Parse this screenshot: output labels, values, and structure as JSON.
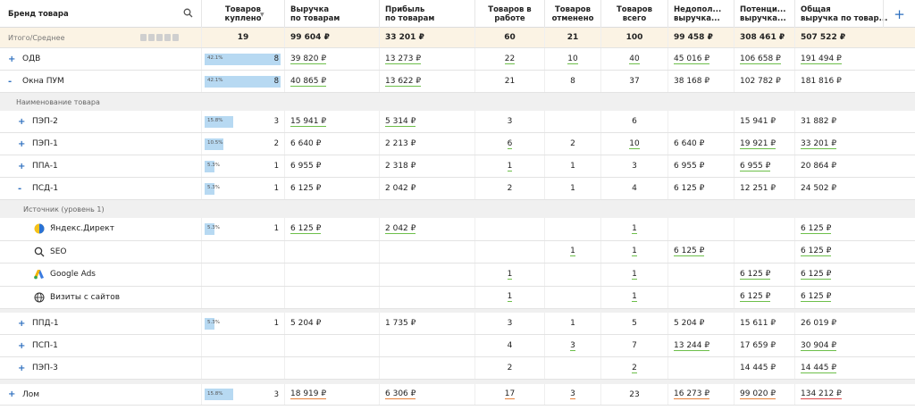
{
  "header": {
    "brand": "Бренд товара",
    "cols": [
      "Товаров\nкуплено",
      "Выручка\nпо товарам",
      "Прибыль\nпо товарам",
      "Товаров в\nработе",
      "Товаров\nотменено",
      "Товаров\nвсего",
      "Недопол...\nвыручка...",
      "Потенци...\nвыручка...",
      "Общая\nвыручка по товар..."
    ],
    "sort_indicator": "▼",
    "add_icon": "+",
    "search_icon": "search-icon"
  },
  "total": {
    "label": "Итого/Среднее",
    "values": [
      "19",
      "99 604 ₽",
      "33 201 ₽",
      "60",
      "21",
      "100",
      "99 458 ₽",
      "308 461 ₽",
      "507 522 ₽"
    ]
  },
  "rows_top": [
    {
      "label": "ОДВ",
      "toggle": "+",
      "pct": "42.1%",
      "count": "8",
      "values": [
        "39 820 ₽",
        "13 273 ₽",
        "22",
        "10",
        "40",
        "45 016 ₽",
        "106 658 ₽",
        "191 494 ₽"
      ]
    },
    {
      "label": "Окна ПУМ",
      "toggle": "-",
      "pct": "42.1%",
      "count": "8",
      "values": [
        "40 865 ₽",
        "13 622 ₽",
        "21",
        "8",
        "37",
        "38 168 ₽",
        "102 782 ₽",
        "181 816 ₽"
      ]
    }
  ],
  "section1": "Наименование товара",
  "rows_mid": [
    {
      "label": "ПЭП-2",
      "toggle": "+",
      "pct": "15.8%",
      "count": "3",
      "values": [
        "15 941 ₽",
        "5 314 ₽",
        "3",
        "",
        "6",
        "",
        "15 941 ₽",
        "31 882 ₽"
      ]
    },
    {
      "label": "ПЭП-1",
      "toggle": "+",
      "pct": "10.5%",
      "count": "2",
      "values": [
        "6 640 ₽",
        "2 213 ₽",
        "6",
        "2",
        "10",
        "6 640 ₽",
        "19 921 ₽",
        "33 201 ₽"
      ]
    },
    {
      "label": "ППА-1",
      "toggle": "+",
      "pct": "5.3%",
      "count": "1",
      "values": [
        "6 955 ₽",
        "2 318 ₽",
        "1",
        "1",
        "3",
        "6 955 ₽",
        "6 955 ₽",
        "20 864 ₽"
      ]
    },
    {
      "label": "ПСД-1",
      "toggle": "-",
      "pct": "5.3%",
      "count": "1",
      "values": [
        "6 125 ₽",
        "2 042 ₽",
        "2",
        "1",
        "4",
        "6 125 ₽",
        "12 251 ₽",
        "24 502 ₽"
      ]
    }
  ],
  "section2": "Источник (уровень 1)",
  "rows_src": [
    {
      "label": "Яндекс.Директ",
      "icon": "yandex-direct-icon",
      "pct": "5.3%",
      "count": "1",
      "values": [
        "6 125 ₽",
        "2 042 ₽",
        "",
        "",
        "1",
        "",
        "",
        "6 125 ₽"
      ]
    },
    {
      "label": "SEO",
      "icon": "search-icon",
      "pct": "",
      "count": "",
      "values": [
        "",
        "",
        "",
        "1",
        "1",
        "6 125 ₽",
        "",
        "6 125 ₽"
      ]
    },
    {
      "label": "Google Ads",
      "icon": "google-ads-icon",
      "pct": "",
      "count": "",
      "values": [
        "",
        "",
        "1",
        "",
        "1",
        "",
        "6 125 ₽",
        "6 125 ₽"
      ]
    },
    {
      "label": "Визиты с сайтов",
      "icon": "globe-icon",
      "pct": "",
      "count": "",
      "values": [
        "",
        "",
        "1",
        "",
        "1",
        "",
        "6 125 ₽",
        "6 125 ₽"
      ]
    }
  ],
  "rows_low": [
    {
      "label": "ППД-1",
      "toggle": "+",
      "pct": "5.3%",
      "count": "1",
      "values": [
        "5 204 ₽",
        "1 735 ₽",
        "3",
        "1",
        "5",
        "5 204 ₽",
        "15 611 ₽",
        "26 019 ₽"
      ]
    },
    {
      "label": "ПСП-1",
      "toggle": "+",
      "pct": "",
      "count": "",
      "values": [
        "",
        "",
        "4",
        "3",
        "7",
        "13 244 ₽",
        "17 659 ₽",
        "30 904 ₽"
      ]
    },
    {
      "label": "ПЭП-3",
      "toggle": "+",
      "pct": "",
      "count": "",
      "values": [
        "",
        "",
        "2",
        "",
        "2",
        "",
        "14 445 ₽",
        "14 445 ₽"
      ]
    }
  ],
  "rows_bottom": [
    {
      "label": "Лом",
      "toggle": "+",
      "pct": "15.8%",
      "count": "3",
      "values": [
        "18 919 ₽",
        "6 306 ₽",
        "17",
        "3",
        "23",
        "16 273 ₽",
        "99 020 ₽",
        "134 212 ₽"
      ]
    }
  ]
}
